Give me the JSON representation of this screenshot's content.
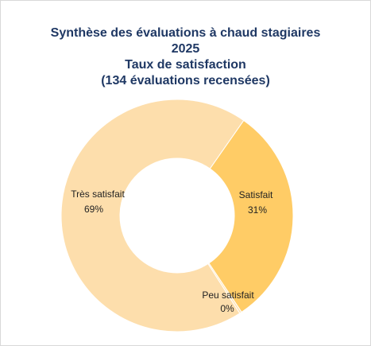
{
  "chart_data": {
    "type": "pie",
    "variant": "donut",
    "title_lines": [
      "Synthèse des évaluations à chaud stagiaires",
      "2025",
      "Taux de satisfaction",
      "(134 évaluations recensées)"
    ],
    "slices": [
      {
        "label": "Satisfait",
        "pct_label": "31%",
        "value": 31,
        "color": "#FFCC66"
      },
      {
        "label": "Peu satisfait",
        "pct_label": "0%",
        "value": 0.3,
        "color": "#FFE3B3"
      },
      {
        "label": "Très satisfait",
        "pct_label": "69%",
        "value": 69,
        "color": "#FDDEAC"
      }
    ],
    "legend": "none",
    "border_color": "#ffffff"
  }
}
